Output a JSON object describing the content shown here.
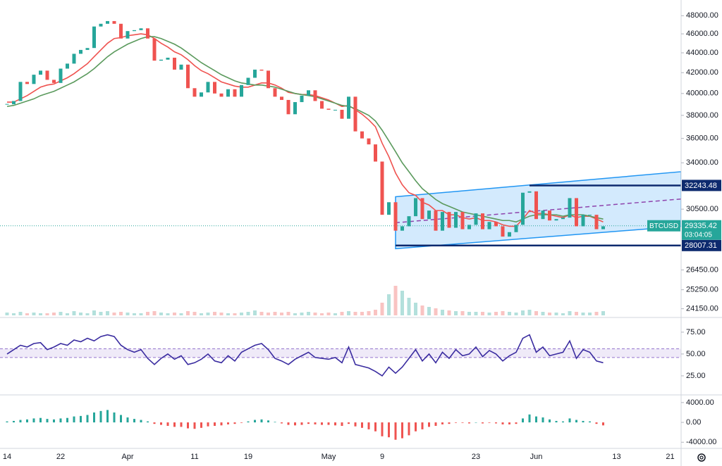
{
  "chart_data": [
    {
      "type": "candlestick",
      "symbol": "BTCUSD",
      "last_price": 29335.42,
      "countdown": "03:04:05",
      "categories": [
        "14",
        null,
        null,
        null,
        null,
        null,
        null,
        null,
        "22",
        null,
        null,
        null,
        null,
        null,
        null,
        null,
        null,
        null,
        "Apr",
        null,
        null,
        null,
        null,
        null,
        null,
        null,
        null,
        null,
        "11",
        null,
        null,
        null,
        null,
        null,
        null,
        null,
        "19",
        null,
        null,
        null,
        null,
        null,
        null,
        null,
        null,
        null,
        null,
        null,
        "May",
        null,
        null,
        null,
        null,
        null,
        null,
        null,
        "9",
        null,
        null,
        null,
        null,
        null,
        null,
        null,
        null,
        null,
        null,
        null,
        null,
        null,
        "23",
        null,
        null,
        null,
        null,
        null,
        null,
        null,
        null,
        "Jun",
        null,
        null,
        null,
        null,
        null,
        null,
        null,
        null,
        null,
        null,
        null,
        "13",
        null,
        null,
        null,
        null,
        null,
        null,
        null,
        "21"
      ],
      "close": [
        39000,
        39300,
        41100,
        40900,
        41800,
        42200,
        41300,
        41000,
        42400,
        42900,
        43900,
        44300,
        44500,
        46800,
        47100,
        47400,
        47100,
        45500,
        46300,
        46400,
        46600,
        45500,
        43200,
        43300,
        43500,
        42300,
        42800,
        40500,
        39700,
        40100,
        41100,
        40000,
        39700,
        40400,
        39700,
        40800,
        41500,
        42300,
        42200,
        40500,
        39700,
        39400,
        38100,
        39200,
        39800,
        40300,
        39300,
        38600,
        38500,
        38500,
        37700,
        39700,
        36600,
        36000,
        35500,
        34100,
        30100,
        31000,
        29000,
        29300,
        30000,
        31300,
        29800,
        30400,
        29000,
        30300,
        29200,
        30300,
        29100,
        29400,
        30200,
        29100,
        29600,
        29300,
        28600,
        28900,
        29400,
        31700,
        31800,
        29800,
        30400,
        29700,
        29800,
        29900,
        31300,
        29300,
        30100,
        30100,
        29100,
        29300,
        null,
        null,
        null,
        null,
        null,
        null,
        null,
        null,
        null,
        null
      ],
      "series": [
        {
          "color": "#ef5350",
          "values": [
            39200,
            39200,
            39500,
            39800,
            40200,
            40600,
            40800,
            40900,
            41200,
            41500,
            41900,
            42400,
            42900,
            43600,
            44300,
            45000,
            45500,
            45600,
            45800,
            45900,
            46000,
            45900,
            45500,
            45000,
            44600,
            44100,
            43800,
            43300,
            42700,
            42200,
            41900,
            41500,
            41100,
            40900,
            40700,
            40600,
            40600,
            40800,
            41000,
            41000,
            40800,
            40500,
            40100,
            40000,
            39900,
            39900,
            39800,
            39600,
            39400,
            39100,
            38800,
            38900,
            38500,
            38100,
            37600,
            37000,
            35600,
            34500,
            33200,
            32300,
            31700,
            31500,
            31000,
            30800,
            30400,
            30400,
            30100,
            30100,
            29900,
            29800,
            29900,
            29700,
            29700,
            29600,
            29400,
            29300,
            29300,
            29800,
            30400,
            30200,
            30200,
            30100,
            30000,
            29900,
            30100,
            29900,
            30000,
            30000,
            29800,
            29600,
            null,
            null,
            null,
            null,
            null,
            null,
            null,
            null,
            null,
            null
          ]
        },
        {
          "color": "#5b9a5d",
          "values": [
            38800,
            38900,
            39100,
            39300,
            39500,
            39800,
            40000,
            40200,
            40500,
            40800,
            41100,
            41500,
            41900,
            42400,
            43000,
            43600,
            44100,
            44500,
            44900,
            45200,
            45500,
            45700,
            45700,
            45500,
            45200,
            44900,
            44500,
            44000,
            43500,
            43000,
            42600,
            42200,
            41800,
            41500,
            41200,
            41000,
            40900,
            40800,
            40800,
            40700,
            40600,
            40400,
            40200,
            40000,
            39900,
            39800,
            39700,
            39500,
            39300,
            39100,
            38900,
            38800,
            38600,
            38300,
            38000,
            37500,
            36700,
            35800,
            34900,
            34000,
            33300,
            32600,
            32000,
            31600,
            31200,
            30900,
            30700,
            30500,
            30300,
            30200,
            30100,
            30000,
            29900,
            29800,
            29700,
            29700,
            29600,
            29800,
            30000,
            30100,
            30100,
            30100,
            30100,
            30000,
            30100,
            30100,
            30100,
            30000,
            29900,
            29800,
            null,
            null,
            null,
            null,
            null,
            null,
            null,
            null,
            null,
            null
          ]
        }
      ],
      "volume": [
        4,
        3,
        5,
        3,
        4,
        3,
        3,
        4,
        5,
        3,
        6,
        4,
        3,
        7,
        5,
        6,
        4,
        5,
        4,
        3,
        3,
        5,
        6,
        4,
        3,
        4,
        3,
        6,
        5,
        3,
        4,
        5,
        4,
        3,
        3,
        4,
        5,
        7,
        5,
        4,
        5,
        4,
        5,
        3,
        4,
        5,
        4,
        3,
        4,
        3,
        5,
        6,
        5,
        5,
        6,
        8,
        18,
        30,
        42,
        35,
        25,
        18,
        14,
        12,
        10,
        8,
        7,
        6,
        6,
        5,
        5,
        5,
        4,
        5,
        6,
        5,
        4,
        7,
        8,
        6,
        5,
        4,
        4,
        3,
        6,
        5,
        4,
        4,
        5,
        6,
        null,
        null,
        null,
        null,
        null,
        null,
        null,
        null,
        null,
        null
      ],
      "volume_ylim": [
        0,
        50
      ],
      "volume_color": "#2196f3",
      "ylim": [
        23700,
        49800
      ],
      "log_scale": true,
      "yticks": [
        {
          "value": 48000,
          "label": "48000.00"
        },
        {
          "value": 46000,
          "label": "46000.00"
        },
        {
          "value": 44000,
          "label": "44000.00"
        },
        {
          "value": 42000,
          "label": "42000.00"
        },
        {
          "value": 40000,
          "label": "40000.00"
        },
        {
          "value": 38000,
          "label": "38000.00"
        },
        {
          "value": 36000,
          "label": "36000.00"
        },
        {
          "value": 34000,
          "label": "34000.00"
        },
        {
          "value": 30500,
          "label": "30500.00"
        },
        {
          "value": 26450,
          "label": "26450.00"
        },
        {
          "value": 25250,
          "label": "25250.00"
        },
        {
          "value": 24150,
          "label": "24150.00"
        }
      ],
      "levels": [
        32243.48,
        28007.31
      ],
      "level_color": "#0d2a6e",
      "channel": {
        "top": [
          31400,
          33300
        ],
        "bottom": [
          27800,
          29300
        ],
        "color": "#2196f3",
        "midline_color": "#8e44ad"
      },
      "up_color": "#26a69a",
      "down_color": "#ef5350",
      "price_color": "#26a69a"
    },
    {
      "type": "line",
      "color": "#3a2ca0",
      "values": [
        50,
        55,
        60,
        58,
        62,
        63,
        55,
        58,
        62,
        60,
        66,
        64,
        68,
        65,
        70,
        72,
        70,
        60,
        55,
        52,
        55,
        45,
        38,
        45,
        50,
        44,
        48,
        38,
        40,
        44,
        50,
        42,
        40,
        48,
        42,
        52,
        56,
        60,
        62,
        55,
        45,
        42,
        38,
        44,
        48,
        52,
        46,
        45,
        44,
        46,
        40,
        58,
        38,
        36,
        34,
        30,
        25,
        35,
        28,
        35,
        45,
        55,
        42,
        50,
        40,
        52,
        45,
        55,
        48,
        50,
        58,
        47,
        54,
        50,
        42,
        48,
        52,
        68,
        72,
        52,
        58,
        48,
        50,
        52,
        65,
        45,
        55,
        52,
        42,
        40,
        null,
        null,
        null,
        null,
        null,
        null,
        null,
        null,
        null,
        null
      ],
      "band": [
        46,
        56
      ],
      "band_color": "#9575cd",
      "ylim": [
        4,
        91
      ],
      "yticks": [
        {
          "value": 75,
          "label": "75.00"
        },
        {
          "value": 50,
          "label": "50.00"
        },
        {
          "value": 25,
          "label": "25.00"
        }
      ]
    },
    {
      "type": "bar",
      "positive_color": "#26a69a",
      "negative_color": "#ef5350",
      "values": [
        200,
        300,
        500,
        600,
        800,
        900,
        700,
        600,
        800,
        900,
        1200,
        1300,
        1500,
        2000,
        2300,
        2500,
        2000,
        1500,
        1000,
        700,
        500,
        200,
        -300,
        -500,
        -700,
        -900,
        -900,
        -1200,
        -1300,
        -1100,
        -800,
        -700,
        -600,
        -400,
        -300,
        -100,
        200,
        500,
        600,
        400,
        100,
        -200,
        -500,
        -600,
        -500,
        -300,
        -400,
        -500,
        -500,
        -600,
        -700,
        -300,
        -800,
        -1100,
        -1400,
        -1800,
        -2800,
        -3000,
        -3500,
        -3200,
        -2600,
        -1800,
        -1400,
        -900,
        -700,
        -400,
        -300,
        -100,
        -100,
        -200,
        0,
        -200,
        -100,
        -200,
        -400,
        -400,
        -300,
        800,
        1600,
        1200,
        1000,
        600,
        300,
        200,
        800,
        500,
        300,
        200,
        -300,
        -600,
        null,
        null,
        null,
        null,
        null,
        null,
        null,
        null,
        null,
        null
      ],
      "ylim": [
        -5100,
        5400
      ],
      "yticks": [
        {
          "value": 4000,
          "label": "4000.00"
        },
        {
          "value": 0,
          "label": "0.00"
        },
        {
          "value": -4000,
          "label": "-4000.00"
        }
      ]
    }
  ]
}
